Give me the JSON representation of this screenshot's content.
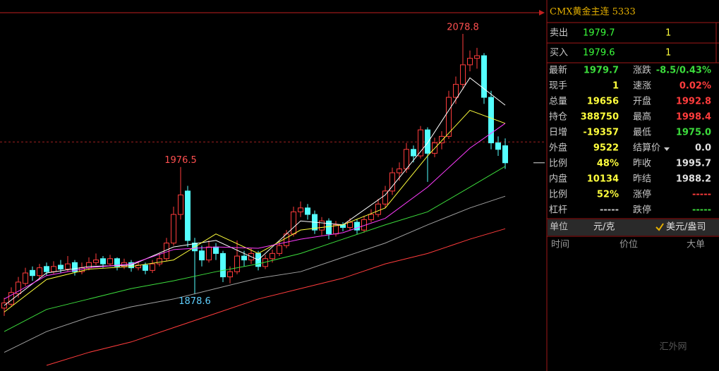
{
  "chart_data": {
    "type": "candlestick",
    "candles": [
      [
        1868,
        1876,
        1862,
        1872
      ],
      [
        1871,
        1884,
        1869,
        1880
      ],
      [
        1879,
        1892,
        1876,
        1888
      ],
      [
        1887,
        1899,
        1885,
        1895
      ],
      [
        1897,
        1900,
        1889,
        1893
      ],
      [
        1893,
        1902,
        1890,
        1899
      ],
      [
        1900,
        1903,
        1893,
        1896
      ],
      [
        1896,
        1904,
        1894,
        1900
      ],
      [
        1901,
        1905,
        1895,
        1898
      ],
      [
        1898,
        1908,
        1896,
        1902
      ],
      [
        1903,
        1905,
        1893,
        1896
      ],
      [
        1896,
        1903,
        1894,
        1899
      ],
      [
        1899,
        1907,
        1897,
        1903
      ],
      [
        1903,
        1910,
        1901,
        1905
      ],
      [
        1906,
        1908,
        1899,
        1902
      ],
      [
        1902,
        1909,
        1900,
        1906
      ],
      [
        1906,
        1907,
        1897,
        1900
      ],
      [
        1900,
        1906,
        1898,
        1903
      ],
      [
        1903,
        1905,
        1896,
        1899
      ],
      [
        1899,
        1904,
        1897,
        1901
      ],
      [
        1901,
        1903,
        1894,
        1897
      ],
      [
        1897,
        1905,
        1895,
        1902
      ],
      [
        1902,
        1910,
        1900,
        1906
      ],
      [
        1906,
        1922,
        1904,
        1918
      ],
      [
        1918,
        1946,
        1916,
        1940
      ],
      [
        1940,
        1976.5,
        1936,
        1955
      ],
      [
        1958,
        1962,
        1915,
        1920
      ],
      [
        1918,
        1922,
        1878.6,
        1912
      ],
      [
        1912,
        1916,
        1900,
        1905
      ],
      [
        1905,
        1920,
        1903,
        1915
      ],
      [
        1915,
        1918,
        1905,
        1910
      ],
      [
        1910,
        1912,
        1888,
        1892
      ],
      [
        1892,
        1900,
        1887,
        1896
      ],
      [
        1896,
        1920,
        1894,
        1908
      ],
      [
        1908,
        1912,
        1900,
        1905
      ],
      [
        1905,
        1914,
        1902,
        1910
      ],
      [
        1910,
        1912,
        1897,
        1900
      ],
      [
        1900,
        1909,
        1898,
        1906
      ],
      [
        1906,
        1913,
        1903,
        1910
      ],
      [
        1910,
        1919,
        1908,
        1916
      ],
      [
        1916,
        1928,
        1914,
        1925
      ],
      [
        1925,
        1946,
        1923,
        1942
      ],
      [
        1942,
        1950,
        1938,
        1945
      ],
      [
        1945,
        1948,
        1936,
        1940
      ],
      [
        1940,
        1943,
        1925,
        1928
      ],
      [
        1928,
        1938,
        1924,
        1935
      ],
      [
        1935,
        1937,
        1921,
        1925
      ],
      [
        1925,
        1935,
        1923,
        1932
      ],
      [
        1932,
        1934,
        1927,
        1930
      ],
      [
        1930,
        1937,
        1928,
        1934
      ],
      [
        1934,
        1936,
        1925,
        1928
      ],
      [
        1928,
        1939,
        1926,
        1936
      ],
      [
        1936,
        1944,
        1934,
        1940
      ],
      [
        1940,
        1952,
        1938,
        1948
      ],
      [
        1948,
        1962,
        1945,
        1958
      ],
      [
        1958,
        1976,
        1955,
        1972
      ],
      [
        1972,
        1980,
        1966,
        1975
      ],
      [
        1975,
        1995,
        1972,
        1990
      ],
      [
        1990,
        1993,
        1980,
        1985
      ],
      [
        1985,
        2008,
        1983,
        2005
      ],
      [
        2005,
        2007,
        1965,
        1987
      ],
      [
        1987,
        1999,
        1984,
        1995
      ],
      [
        1995,
        2004,
        1990,
        2000
      ],
      [
        2000,
        2035,
        1998,
        2030
      ],
      [
        2030,
        2046,
        2025,
        2040
      ],
      [
        2040,
        2078.8,
        2036,
        2055
      ],
      [
        2055,
        2066,
        2050,
        2060
      ],
      [
        2060,
        2068,
        2052,
        2062
      ],
      [
        2062,
        2064,
        2025,
        2030
      ],
      [
        2030,
        2035,
        1990,
        1995
      ],
      [
        1995,
        2000,
        1985,
        1990
      ],
      [
        1992.8,
        1998.4,
        1975.0,
        1979.7
      ]
    ],
    "up_color": "#ff3c3c",
    "down_color": "#54ffff",
    "x": [
      0,
      6,
      12,
      18,
      24,
      30,
      36,
      42,
      48,
      54,
      60,
      66,
      71
    ],
    "series": [
      {
        "color": "#ffffff",
        "values": [
          1870,
          1895,
          1900,
          1901,
          1915,
          1920,
          1905,
          1935,
          1932,
          1955,
          1995,
          2045,
          2024
        ]
      },
      {
        "color": "#ffff3c",
        "values": [
          1865,
          1890,
          1898,
          1900,
          1905,
          1925,
          1910,
          1928,
          1932,
          1945,
          1985,
          2020,
          2010
        ]
      },
      {
        "color": "#ff3cff",
        "values": [
          1875,
          1893,
          1899,
          1902,
          1913,
          1915,
          1914,
          1921,
          1926,
          1937,
          1961,
          1991,
          2010
        ]
      },
      {
        "color": "#3cdc3c",
        "values": [
          1850,
          1867,
          1875,
          1883,
          1889,
          1896,
          1902,
          1910,
          1921,
          1932,
          1942,
          1961,
          1977
        ]
      },
      {
        "color": "#a0a0a0",
        "values": [
          1834,
          1850,
          1861,
          1869,
          1875,
          1883,
          1891,
          1896,
          1907,
          1918,
          1932,
          1945,
          1954
        ]
      },
      {
        "color": "#ff3c3c",
        "values": [
          null,
          1824,
          1834,
          1842,
          1853,
          1864,
          1875,
          1883,
          1891,
          1902,
          1910,
          1921,
          1929
        ]
      }
    ]
  },
  "panel": {
    "title": "CMX黄金主连 5333",
    "quotes": [
      {
        "label": "卖出",
        "price": 1979.7,
        "volume": 1
      },
      {
        "label": "买入",
        "price": 1979.6,
        "volume": 1
      }
    ],
    "stats": [
      [
        {
          "label": "最新",
          "value": 1979.7,
          "color": "#3cdc3c"
        },
        {
          "label": "涨跌",
          "value": "-8.5/0.43%",
          "color": "#3cdc3c"
        }
      ],
      [
        {
          "label": "现手",
          "value": 1,
          "color": "#ffff3c"
        },
        {
          "label": "速涨",
          "value": "0.02%",
          "color": "#ff3c3c"
        }
      ],
      [
        {
          "label": "总量",
          "value": 19656,
          "color": "#ffff3c"
        },
        {
          "label": "开盘",
          "value": 1992.8,
          "color": "#ff3c3c"
        }
      ],
      [
        {
          "label": "持仓",
          "value": 388750,
          "color": "#ffff3c"
        },
        {
          "label": "最高",
          "value": 1998.4,
          "color": "#ff3c3c"
        }
      ],
      [
        {
          "label": "日增",
          "value": -19357,
          "color": "#ffff3c"
        },
        {
          "label": "最低",
          "value": "1975.0",
          "color": "#3cdc3c"
        }
      ],
      [
        {
          "label": "外盘",
          "value": 9522,
          "color": "#ffff3c"
        },
        {
          "label": "结算价",
          "value": "0.0",
          "color": "#e0e0e0"
        }
      ],
      [
        {
          "label": "比例",
          "value": "48%",
          "color": "#ffff3c"
        },
        {
          "label": "昨收",
          "value": 1995.7,
          "color": "#e0e0e0"
        }
      ],
      [
        {
          "label": "内盘",
          "value": 10134,
          "color": "#ffff3c"
        },
        {
          "label": "昨结",
          "value": 1988.2,
          "color": "#e0e0e0"
        }
      ],
      [
        {
          "label": "比例",
          "value": "52%",
          "color": "#ffff3c"
        },
        {
          "label": "涨停",
          "value": "-----",
          "color": "#ff3c3c"
        }
      ],
      [
        {
          "label": "杠杆",
          "value": "-----",
          "color": "#c8c8c8"
        },
        {
          "label": "跌停",
          "value": "-----",
          "color": "#3cdc3c"
        }
      ]
    ],
    "unit": {
      "label": "单位",
      "options": [
        "元/克",
        "美元/盎司"
      ]
    },
    "columns": [
      "时间",
      "价位",
      "大单"
    ]
  },
  "watermark": "汇外网"
}
